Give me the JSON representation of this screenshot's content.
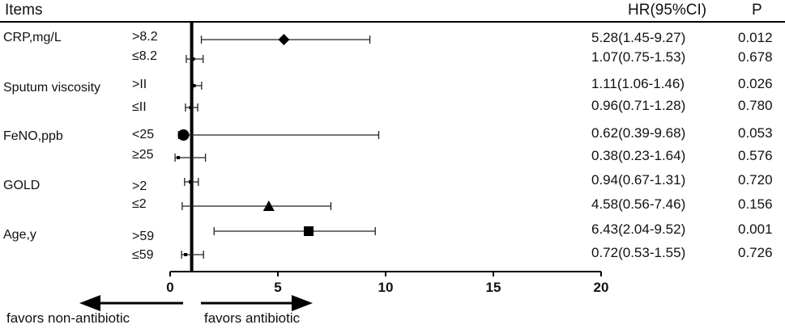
{
  "header": {
    "items": "Items",
    "hr": "HR(95%CI)",
    "p": "P"
  },
  "arrows": {
    "left": "favors non-antibiotic",
    "right": "favors antibiotic"
  },
  "groups": [
    {
      "label": "CRP,mg/L"
    },
    {
      "label": "Sputum viscosity"
    },
    {
      "label": "FeNO,ppb"
    },
    {
      "label": "GOLD"
    },
    {
      "label": "Age,y"
    }
  ],
  "chart_data": {
    "type": "forest",
    "xlim": [
      0,
      20
    ],
    "xticks": [
      "0",
      "5",
      "10",
      "15",
      "20"
    ],
    "reference_line": 1,
    "rows": [
      {
        "group": "CRP,mg/L",
        "sub": ">8.2",
        "hr": 5.28,
        "lo": 1.45,
        "hi": 9.27,
        "hr_text": "5.28(1.45-9.27)",
        "p": "0.012",
        "marker": "diamond"
      },
      {
        "group": "CRP,mg/L",
        "sub": "≤8.2",
        "hr": 1.07,
        "lo": 0.75,
        "hi": 1.53,
        "hr_text": "1.07(0.75-1.53)",
        "p": "0.678",
        "marker": "none"
      },
      {
        "group": "Sputum viscosity",
        "sub": ">II",
        "hr": 1.11,
        "lo": 1.06,
        "hi": 1.46,
        "hr_text": "1.11(1.06-1.46)",
        "p": "0.026",
        "marker": "none"
      },
      {
        "group": "Sputum viscosity",
        "sub": "≤II",
        "hr": 0.96,
        "lo": 0.71,
        "hi": 1.28,
        "hr_text": "0.96(0.71-1.28)",
        "p": "0.780",
        "marker": "none"
      },
      {
        "group": "FeNO,ppb",
        "sub": "<25",
        "hr": 0.62,
        "lo": 0.39,
        "hi": 9.68,
        "hr_text": "0.62(0.39-9.68)",
        "p": "0.053",
        "marker": "circle"
      },
      {
        "group": "FeNO,ppb",
        "sub": "≥25",
        "hr": 0.38,
        "lo": 0.23,
        "hi": 1.64,
        "hr_text": "0.38(0.23-1.64)",
        "p": "0.576",
        "marker": "none"
      },
      {
        "group": "GOLD",
        "sub": ">2",
        "hr": 0.94,
        "lo": 0.67,
        "hi": 1.31,
        "hr_text": "0.94(0.67-1.31)",
        "p": "0.720",
        "marker": "none"
      },
      {
        "group": "GOLD",
        "sub": "≤2",
        "hr": 4.58,
        "lo": 0.56,
        "hi": 7.46,
        "hr_text": "4.58(0.56-7.46)",
        "p": "0.156",
        "marker": "triangle"
      },
      {
        "group": "Age,y",
        "sub": ">59",
        "hr": 6.43,
        "lo": 2.04,
        "hi": 9.52,
        "hr_text": "6.43(2.04-9.52)",
        "p": "0.001",
        "marker": "square"
      },
      {
        "group": "Age,y",
        "sub": "≤59",
        "hr": 0.72,
        "lo": 0.53,
        "hi": 1.55,
        "hr_text": "0.72(0.53-1.55)",
        "p": "0.726",
        "marker": "none"
      }
    ]
  }
}
